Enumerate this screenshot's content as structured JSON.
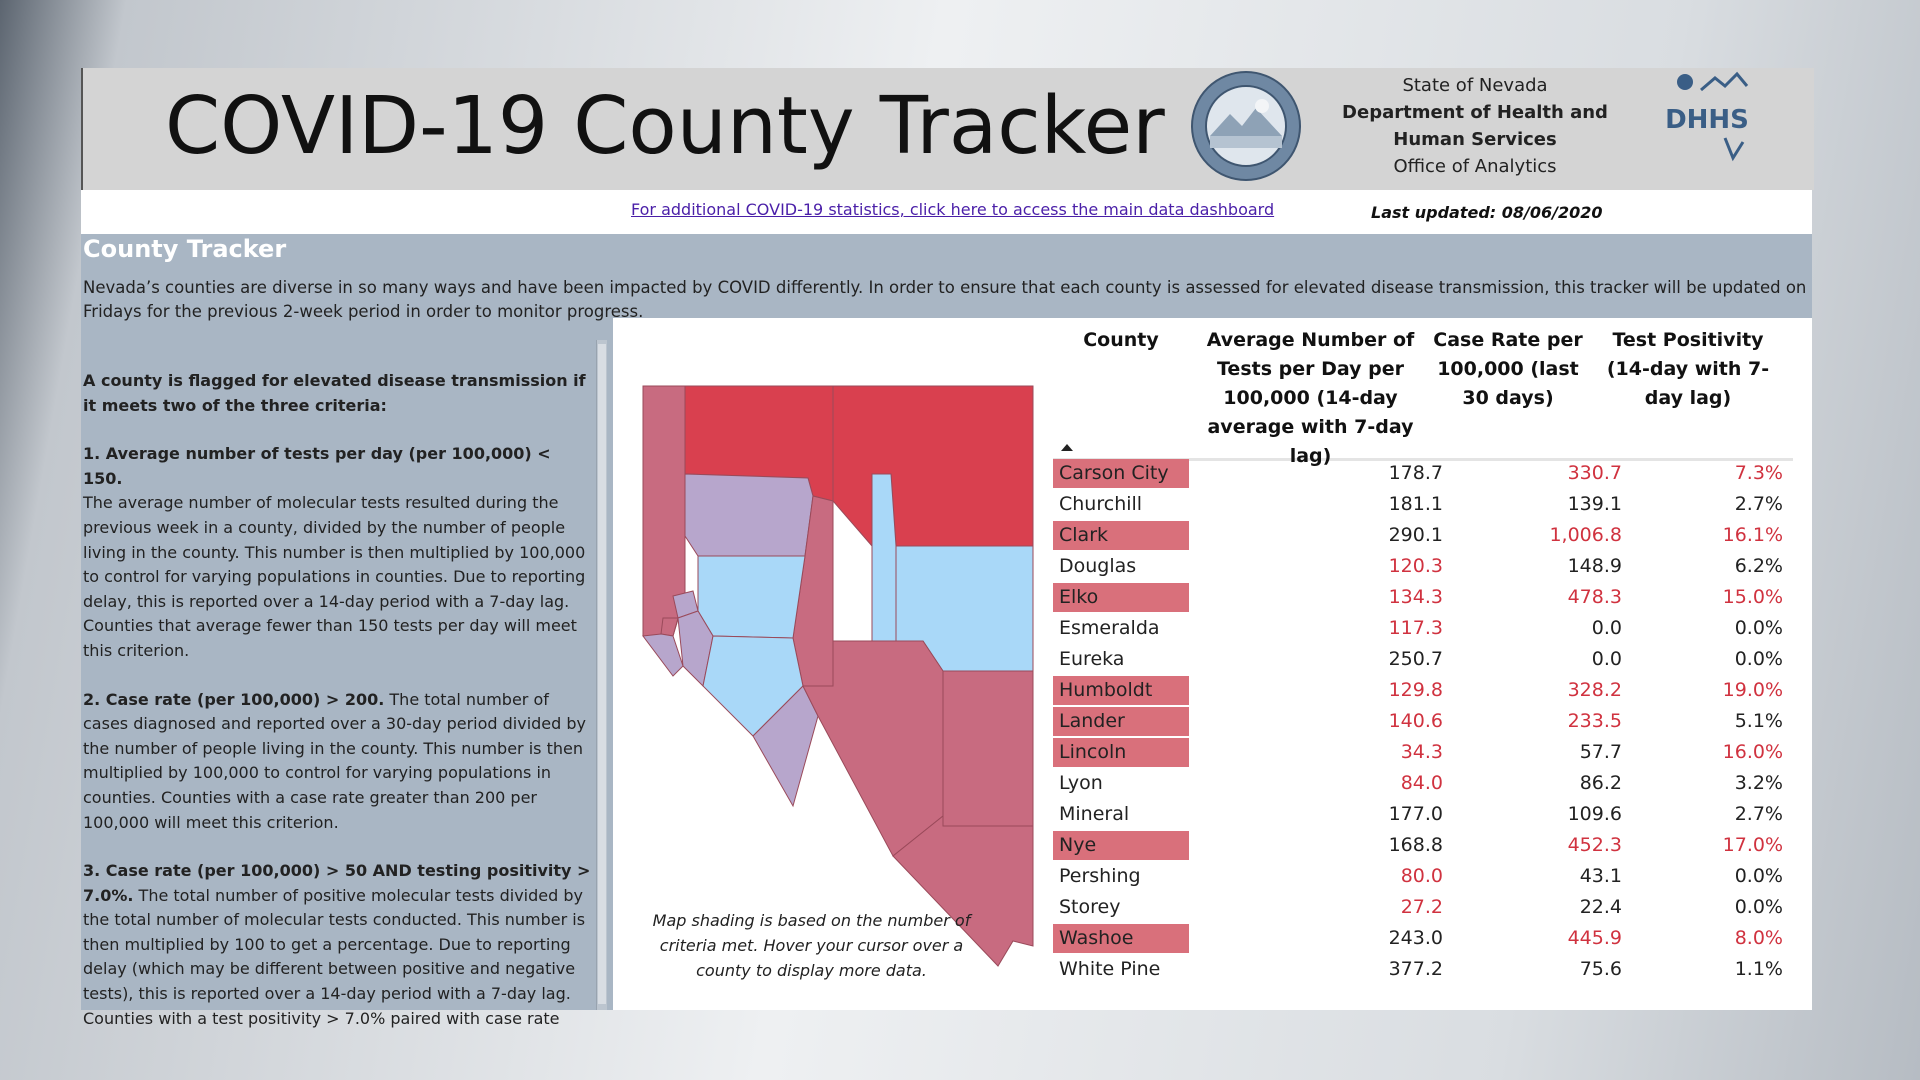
{
  "header": {
    "title": "COVID-19 County Tracker",
    "agency": {
      "state": "State of Nevada",
      "department_line1": "Department of Health and",
      "department_line2": "Human Services",
      "office": "Office of Analytics"
    },
    "logo_text": "DHHS"
  },
  "linkbar": {
    "dashboard_link": "For additional COVID-19 statistics, click here to access the main data dashboard",
    "last_updated": "Last updated: 08/06/2020"
  },
  "section": {
    "title": "County Tracker",
    "intro": "Nevada’s counties are diverse in so many ways and have been impacted by COVID differently. In order to ensure that each county is assessed for elevated disease transmission, this tracker will be updated on Fridays for the previous 2-week period in order to monitor progress.",
    "criteria_heading": "A county is flagged for elevated disease transmission if it meets two of the three criteria:",
    "criteria": [
      {
        "title": "1.    Average number of tests per day (per 100,000) < 150.",
        "body": "The average number of molecular tests resulted during the previous week in a county, divided by the number of people living in the county. This number is then multiplied by 100,000 to control for varying populations in counties. Due to reporting delay, this is reported over a 14-day period with a 7-day lag. Counties that average fewer than 150 tests per day will meet this criterion."
      },
      {
        "title": "2.    Case rate (per 100,000) > 200.",
        "body": " The total number of cases diagnosed and reported over a 30-day period divided by the number of people living in the county.  This number is then multiplied by 100,000 to control for varying populations in counties. Counties with a case rate greater than 200 per 100,000 will meet this criterion."
      },
      {
        "title": "3.    Case rate (per 100,000) > 50 AND testing positivity > 7.0%.",
        "body": " The total number of positive molecular tests divided by the total number of molecular tests conducted.  This number is then multiplied by 100 to get a percentage.   Due to reporting delay (which may be different between positive and negative tests), this is reported over a 14-day period with a 7-day lag. Counties with a test positivity > 7.0% paired with case rate"
      }
    ]
  },
  "map": {
    "note": "Map shading is based on the number of criteria met.  Hover your cursor over a county to display more data.",
    "colors": {
      "three_criteria": "#d9404f",
      "two_criteria": "#c86b80",
      "one_criteria": "#b7a6cc",
      "zero_criteria": "#a9d8f8"
    }
  },
  "table": {
    "headers": {
      "county": "County",
      "tests": "Average Number of Tests per Day per 100,000 (14-day average with 7-day lag)",
      "case_rate": "Case Rate per 100,000 (last 30 days)",
      "positivity": "Test Positivity (14-day with 7-day lag)"
    },
    "flag_color": "#d9707b",
    "alert_color": "#d0323f",
    "rows": [
      {
        "county": "Carson City",
        "flagged": true,
        "tests": "178.7",
        "tests_alert": false,
        "case_rate": "330.7",
        "case_alert": true,
        "positivity": "7.3%",
        "pos_alert": true
      },
      {
        "county": "Churchill",
        "flagged": false,
        "tests": "181.1",
        "tests_alert": false,
        "case_rate": "139.1",
        "case_alert": false,
        "positivity": "2.7%",
        "pos_alert": false
      },
      {
        "county": "Clark",
        "flagged": true,
        "tests": "290.1",
        "tests_alert": false,
        "case_rate": "1,006.8",
        "case_alert": true,
        "positivity": "16.1%",
        "pos_alert": true
      },
      {
        "county": "Douglas",
        "flagged": false,
        "tests": "120.3",
        "tests_alert": true,
        "case_rate": "148.9",
        "case_alert": false,
        "positivity": "6.2%",
        "pos_alert": false
      },
      {
        "county": "Elko",
        "flagged": true,
        "tests": "134.3",
        "tests_alert": true,
        "case_rate": "478.3",
        "case_alert": true,
        "positivity": "15.0%",
        "pos_alert": true
      },
      {
        "county": "Esmeralda",
        "flagged": false,
        "tests": "117.3",
        "tests_alert": true,
        "case_rate": "0.0",
        "case_alert": false,
        "positivity": "0.0%",
        "pos_alert": false
      },
      {
        "county": "Eureka",
        "flagged": false,
        "tests": "250.7",
        "tests_alert": false,
        "case_rate": "0.0",
        "case_alert": false,
        "positivity": "0.0%",
        "pos_alert": false
      },
      {
        "county": "Humboldt",
        "flagged": true,
        "tests": "129.8",
        "tests_alert": true,
        "case_rate": "328.2",
        "case_alert": true,
        "positivity": "19.0%",
        "pos_alert": true
      },
      {
        "county": "Lander",
        "flagged": true,
        "tests": "140.6",
        "tests_alert": true,
        "case_rate": "233.5",
        "case_alert": true,
        "positivity": "5.1%",
        "pos_alert": false
      },
      {
        "county": "Lincoln",
        "flagged": true,
        "tests": "34.3",
        "tests_alert": true,
        "case_rate": "57.7",
        "case_alert": false,
        "positivity": "16.0%",
        "pos_alert": true
      },
      {
        "county": "Lyon",
        "flagged": false,
        "tests": "84.0",
        "tests_alert": true,
        "case_rate": "86.2",
        "case_alert": false,
        "positivity": "3.2%",
        "pos_alert": false
      },
      {
        "county": "Mineral",
        "flagged": false,
        "tests": "177.0",
        "tests_alert": false,
        "case_rate": "109.6",
        "case_alert": false,
        "positivity": "2.7%",
        "pos_alert": false
      },
      {
        "county": "Nye",
        "flagged": true,
        "tests": "168.8",
        "tests_alert": false,
        "case_rate": "452.3",
        "case_alert": true,
        "positivity": "17.0%",
        "pos_alert": true
      },
      {
        "county": "Pershing",
        "flagged": false,
        "tests": "80.0",
        "tests_alert": true,
        "case_rate": "43.1",
        "case_alert": false,
        "positivity": "0.0%",
        "pos_alert": false
      },
      {
        "county": "Storey",
        "flagged": false,
        "tests": "27.2",
        "tests_alert": true,
        "case_rate": "22.4",
        "case_alert": false,
        "positivity": "0.0%",
        "pos_alert": false
      },
      {
        "county": "Washoe",
        "flagged": true,
        "tests": "243.0",
        "tests_alert": false,
        "case_rate": "445.9",
        "case_alert": true,
        "positivity": "8.0%",
        "pos_alert": true
      },
      {
        "county": "White Pine",
        "flagged": false,
        "tests": "377.2",
        "tests_alert": false,
        "case_rate": "75.6",
        "case_alert": false,
        "positivity": "1.1%",
        "pos_alert": false
      }
    ]
  }
}
